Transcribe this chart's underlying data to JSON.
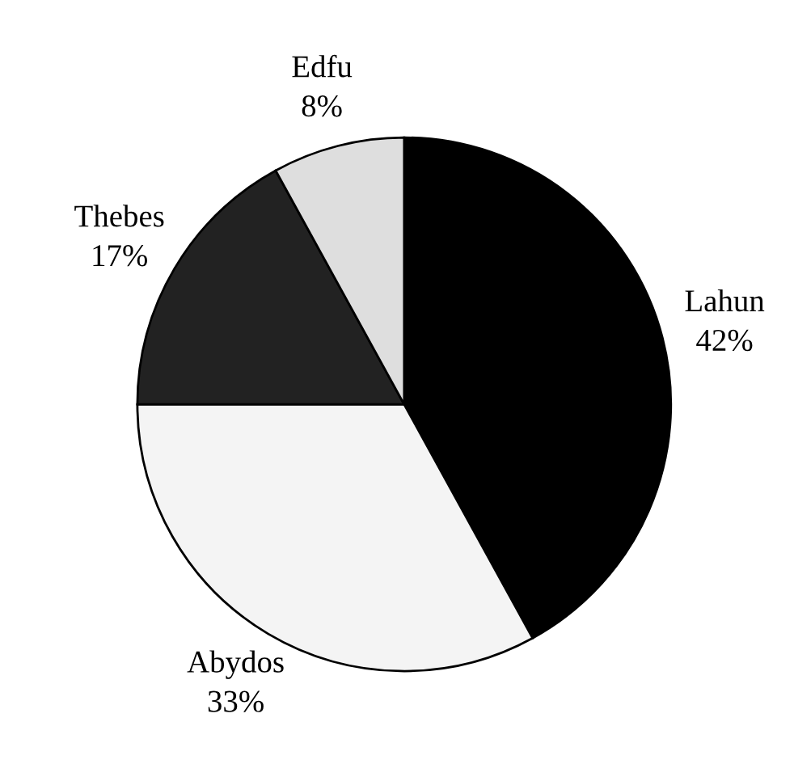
{
  "chart_data": {
    "type": "pie",
    "categories": [
      "Lahun",
      "Abydos",
      "Thebes",
      "Edfu"
    ],
    "values": [
      42,
      33,
      17,
      8
    ],
    "value_labels": [
      "42%",
      "33%",
      "17%",
      "8%"
    ],
    "colors": [
      "#000000",
      "#f4f4f4",
      "#222222",
      "#dedede"
    ]
  }
}
